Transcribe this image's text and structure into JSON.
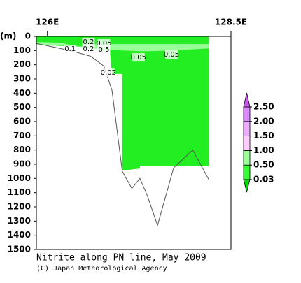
{
  "chart_data": {
    "type": "section",
    "title": "Nitrite along PN line, May 2009",
    "credit": "(C) Japan Meteorological Agency",
    "y_label": "(m)",
    "xlim": [
      125.85,
      128.5
    ],
    "xticks": [
      {
        "value": 126,
        "label": "126E"
      },
      {
        "value": 128.5,
        "label": "128.5E"
      }
    ],
    "ylim": [
      0,
      1500
    ],
    "y_inverted": true,
    "yticks": [
      0,
      100,
      200,
      300,
      400,
      500,
      600,
      700,
      800,
      900,
      1000,
      1100,
      1200,
      1300,
      1400,
      1500
    ],
    "regions": [
      {
        "color": "#22ee22",
        "lon": [
          125.85,
          128.2,
          128.2,
          127.26,
          127.26,
          127.02,
          127.02,
          126.88,
          126.85,
          126.77,
          126.6,
          126.3,
          125.85
        ],
        "depth": [
          0,
          0,
          910,
          910,
          930,
          945,
          265,
          265,
          100,
          100,
          75,
          70,
          60
        ]
      },
      {
        "color": "#99ff99",
        "lon": [
          126.55,
          128.2,
          128.2,
          127.7,
          127.3,
          126.8,
          126.5
        ],
        "depth": [
          55,
          55,
          85,
          100,
          105,
          95,
          80
        ]
      },
      {
        "color": "#99ff99",
        "lon": [
          125.85,
          126.2,
          126.3,
          126.1,
          125.85
        ],
        "depth": [
          40,
          45,
          60,
          65,
          60
        ]
      }
    ],
    "bottom": {
      "lon": [
        125.85,
        126.31,
        126.59,
        126.77,
        126.88,
        127.02,
        127.15,
        127.26,
        127.36,
        127.5,
        127.72,
        127.98,
        128.2
      ],
      "depth": [
        50,
        100,
        140,
        210,
        380,
        950,
        1070,
        1000,
        1120,
        1330,
        925,
        800,
        1010
      ],
      "color": "#555555"
    },
    "contour_labels": [
      {
        "text": "0.1",
        "lon": 126.31,
        "depth": 89
      },
      {
        "text": "0.2",
        "lon": 126.56,
        "depth": 39
      },
      {
        "text": "0.05",
        "lon": 126.77,
        "depth": 49
      },
      {
        "text": "0.2",
        "lon": 126.56,
        "depth": 89
      },
      {
        "text": "0.5",
        "lon": 126.77,
        "depth": 93
      },
      {
        "text": "0.05",
        "lon": 127.24,
        "depth": 148
      },
      {
        "text": "0.05",
        "lon": 127.69,
        "depth": 128
      },
      {
        "text": "0.02",
        "lon": 126.83,
        "depth": 256
      }
    ],
    "colorbar": {
      "levels": [
        {
          "value": 0.03,
          "label": "0.03"
        },
        {
          "value": 0.5,
          "label": "0.50"
        },
        {
          "value": 1.0,
          "label": "1.00"
        },
        {
          "value": 1.5,
          "label": "1.50"
        },
        {
          "value": 2.0,
          "label": "2.00"
        },
        {
          "value": 2.5,
          "label": "2.50"
        }
      ],
      "colors": [
        "#00dd00",
        "#33ff33",
        "#99ff99",
        "#ffccff",
        "#eeaaff",
        "#dd88ff",
        "#cc55ee"
      ]
    }
  }
}
